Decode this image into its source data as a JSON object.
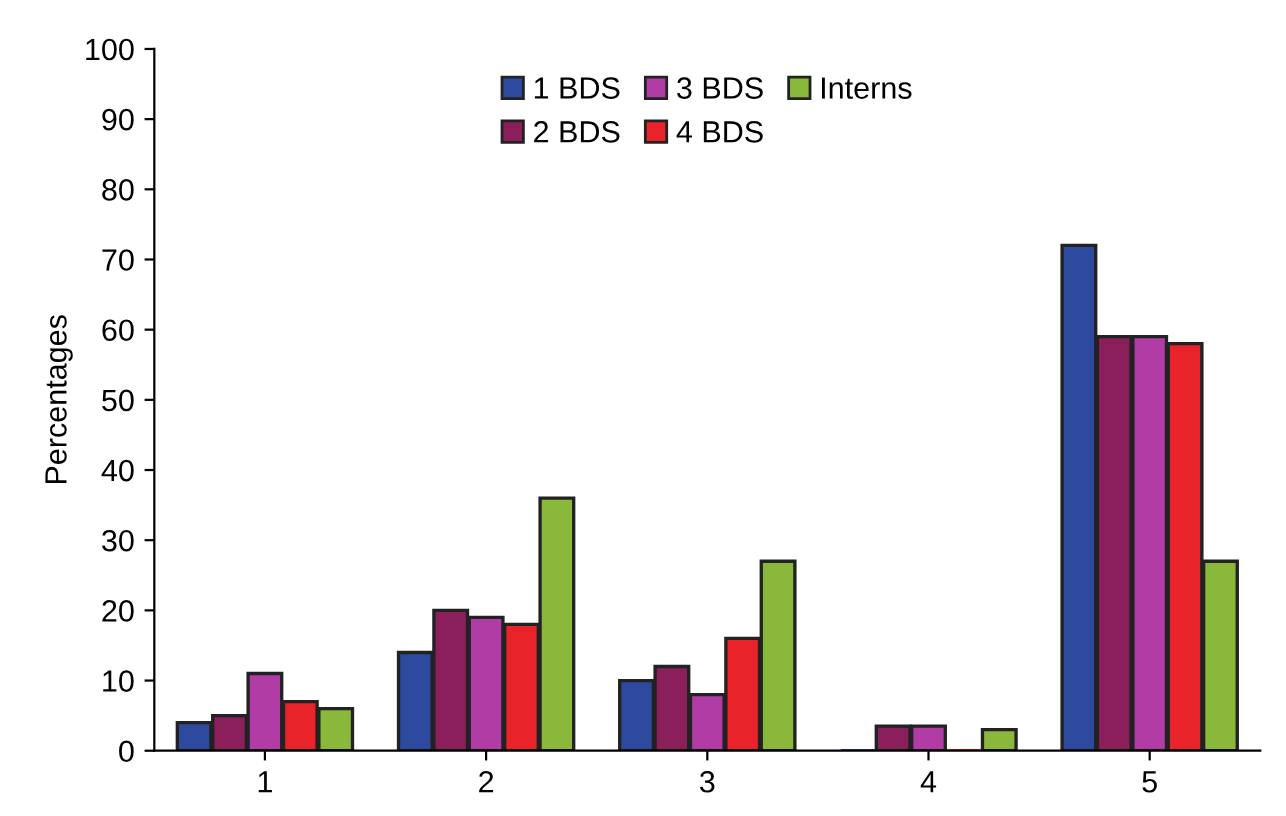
{
  "chart_data": {
    "type": "bar",
    "ylabel": "Percentages",
    "categories": [
      "1",
      "2",
      "3",
      "4",
      "5"
    ],
    "series": [
      {
        "name": "1 BDS",
        "color": "#2e4a9e",
        "values": [
          4,
          14,
          10,
          0,
          72
        ]
      },
      {
        "name": "2 BDS",
        "color": "#8b1f5c",
        "values": [
          5,
          20,
          12,
          3.5,
          59
        ]
      },
      {
        "name": "3 BDS",
        "color": "#b23ca6",
        "values": [
          11,
          19,
          8,
          3.5,
          59
        ]
      },
      {
        "name": "4 BDS",
        "color": "#e8242a",
        "values": [
          7,
          18,
          16,
          0,
          58
        ]
      },
      {
        "name": "Interns",
        "color": "#8ab83a",
        "values": [
          6,
          36,
          27,
          3,
          27
        ]
      }
    ],
    "ylim": [
      0,
      100
    ],
    "yticks": [
      0,
      10,
      20,
      30,
      40,
      50,
      60,
      70,
      80,
      90,
      100
    ],
    "grid": false,
    "legend": "top"
  }
}
